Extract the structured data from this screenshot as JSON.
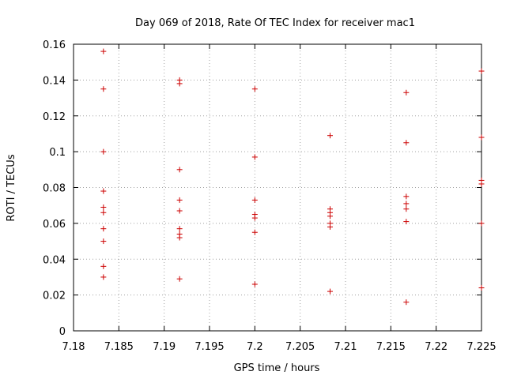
{
  "chart_data": {
    "type": "scatter",
    "title": "Day 069 of 2018, Rate Of TEC Index for receiver mac1",
    "xlabel": "GPS time / hours",
    "ylabel": "ROTI / TECUs",
    "xlim": [
      7.18,
      7.225
    ],
    "ylim": [
      0,
      0.16
    ],
    "grid": true,
    "marker": "+",
    "marker_color": "#cc0000",
    "xticks": [
      7.18,
      7.185,
      7.19,
      7.195,
      7.2,
      7.205,
      7.21,
      7.215,
      7.22,
      7.225
    ],
    "xtick_labels": [
      "7.18",
      "7.185",
      "7.19",
      "7.195",
      "7.2",
      "7.205",
      "7.21",
      "7.215",
      "7.22",
      "7.225"
    ],
    "yticks": [
      0,
      0.02,
      0.04,
      0.06,
      0.08,
      0.1,
      0.12,
      0.14,
      0.16
    ],
    "ytick_labels": [
      "0",
      "0.02",
      "0.04",
      "0.06",
      "0.08",
      "0.1",
      "0.12",
      "0.14",
      "0.16"
    ],
    "series": [
      {
        "name": "ROTI",
        "points": [
          [
            7.1833,
            0.156
          ],
          [
            7.1833,
            0.135
          ],
          [
            7.1833,
            0.1
          ],
          [
            7.1833,
            0.078
          ],
          [
            7.1833,
            0.069
          ],
          [
            7.1833,
            0.066
          ],
          [
            7.1833,
            0.057
          ],
          [
            7.1833,
            0.05
          ],
          [
            7.1833,
            0.036
          ],
          [
            7.1833,
            0.03
          ],
          [
            7.1917,
            0.14
          ],
          [
            7.1917,
            0.138
          ],
          [
            7.1917,
            0.09
          ],
          [
            7.1917,
            0.073
          ],
          [
            7.1917,
            0.067
          ],
          [
            7.1917,
            0.057
          ],
          [
            7.1917,
            0.054
          ],
          [
            7.1917,
            0.052
          ],
          [
            7.1917,
            0.029
          ],
          [
            7.2,
            0.135
          ],
          [
            7.2,
            0.097
          ],
          [
            7.2,
            0.073
          ],
          [
            7.2,
            0.065
          ],
          [
            7.2,
            0.063
          ],
          [
            7.2,
            0.055
          ],
          [
            7.2,
            0.026
          ],
          [
            7.2083,
            0.109
          ],
          [
            7.2083,
            0.068
          ],
          [
            7.2083,
            0.066
          ],
          [
            7.2083,
            0.064
          ],
          [
            7.2083,
            0.06
          ],
          [
            7.2083,
            0.058
          ],
          [
            7.2083,
            0.022
          ],
          [
            7.2167,
            0.133
          ],
          [
            7.2167,
            0.105
          ],
          [
            7.2167,
            0.075
          ],
          [
            7.2167,
            0.071
          ],
          [
            7.2167,
            0.068
          ],
          [
            7.2167,
            0.061
          ],
          [
            7.2167,
            0.016
          ],
          [
            7.225,
            0.145
          ],
          [
            7.225,
            0.108
          ],
          [
            7.225,
            0.084
          ],
          [
            7.225,
            0.082
          ],
          [
            7.225,
            0.06
          ],
          [
            7.225,
            0.024
          ]
        ]
      }
    ]
  }
}
